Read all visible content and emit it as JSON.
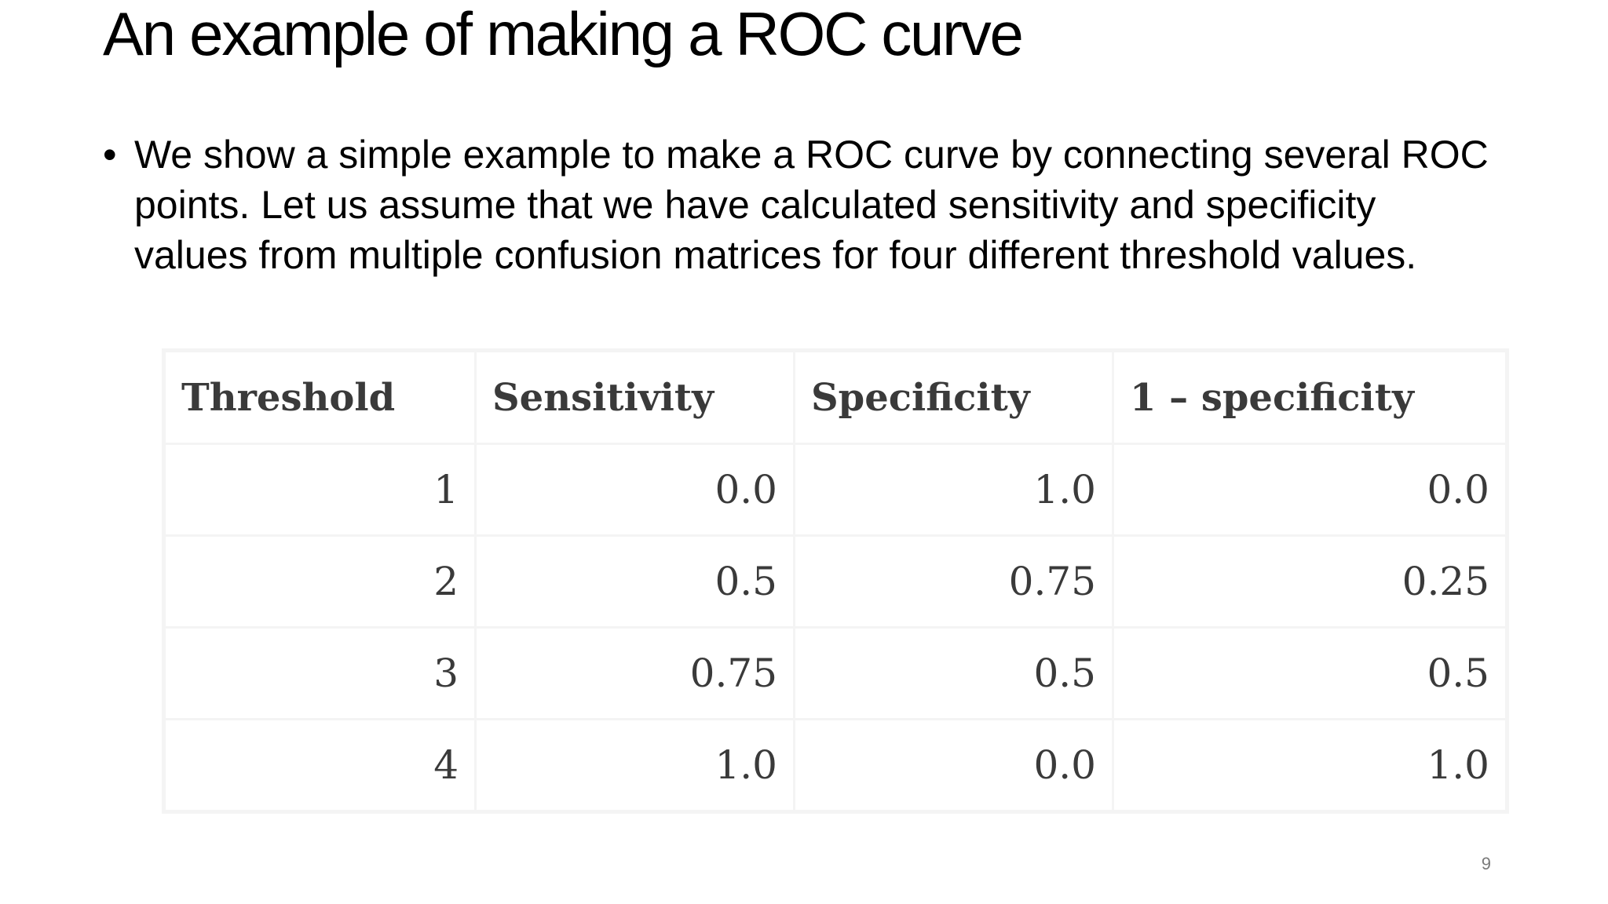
{
  "slide": {
    "title": "An example of making a ROC curve",
    "bullets": [
      {
        "marker": "•",
        "lines": [
          "We show a simple example to make a ROC curve by connecting several ROC",
          "points. Let us assume that we have calculated sensitivity and specificity",
          "values from multiple confusion matrices for four different threshold values."
        ]
      }
    ],
    "page_number": "9"
  },
  "table": {
    "headers": [
      "Threshold",
      "Sensitivity",
      "Specificity",
      "1 – specificity"
    ],
    "rows": [
      [
        "1",
        "0.0",
        "1.0",
        "0.0"
      ],
      [
        "2",
        "0.5",
        "0.75",
        "0.25"
      ],
      [
        "3",
        "0.75",
        "0.5",
        "0.5"
      ],
      [
        "4",
        "1.0",
        "0.0",
        "1.0"
      ]
    ]
  }
}
